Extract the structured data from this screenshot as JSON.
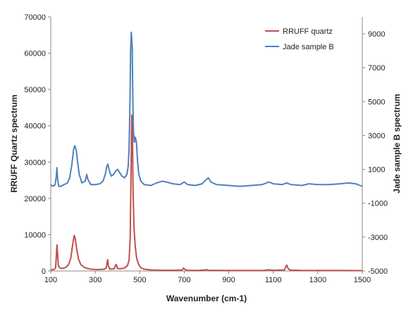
{
  "chart_data": {
    "type": "line",
    "xlabel": "Wavenumber (cm-1)",
    "ylabel_left": "RRUFF Quartz spectrum",
    "ylabel_right": "Jade sample B spectrum",
    "xlim": [
      100,
      1500
    ],
    "x_ticks": [
      100,
      300,
      500,
      700,
      900,
      1100,
      1300,
      1500
    ],
    "y_left_lim": [
      0,
      70000
    ],
    "y_left_ticks": [
      0,
      10000,
      20000,
      30000,
      40000,
      50000,
      60000,
      70000
    ],
    "y_right_lim": [
      -5000,
      10000
    ],
    "y_right_ticks": [
      -5000,
      -3000,
      -1000,
      1000,
      3000,
      5000,
      7000,
      9000
    ],
    "grid": false,
    "legend_position": "top-right",
    "series": [
      {
        "name": "RRUFF quartz",
        "axis": "left",
        "color": "#c0504d",
        "points": [
          [
            100,
            300
          ],
          [
            115,
            400
          ],
          [
            122,
            900
          ],
          [
            126,
            5000
          ],
          [
            128,
            7200
          ],
          [
            130,
            5500
          ],
          [
            134,
            1500
          ],
          [
            140,
            900
          ],
          [
            150,
            700
          ],
          [
            160,
            800
          ],
          [
            170,
            1100
          ],
          [
            180,
            1800
          ],
          [
            190,
            3500
          ],
          [
            198,
            7000
          ],
          [
            205,
            9800
          ],
          [
            210,
            9000
          ],
          [
            218,
            5500
          ],
          [
            225,
            3200
          ],
          [
            235,
            1800
          ],
          [
            250,
            1000
          ],
          [
            265,
            700
          ],
          [
            280,
            500
          ],
          [
            300,
            400
          ],
          [
            320,
            400
          ],
          [
            340,
            500
          ],
          [
            350,
            900
          ],
          [
            354,
            2700
          ],
          [
            356,
            3100
          ],
          [
            359,
            1500
          ],
          [
            365,
            500
          ],
          [
            385,
            600
          ],
          [
            392,
            1700
          ],
          [
            395,
            1800
          ],
          [
            399,
            700
          ],
          [
            410,
            600
          ],
          [
            430,
            800
          ],
          [
            445,
            1500
          ],
          [
            452,
            3000
          ],
          [
            457,
            9000
          ],
          [
            461,
            28000
          ],
          [
            464,
            43000
          ],
          [
            467,
            38000
          ],
          [
            470,
            22000
          ],
          [
            474,
            12000
          ],
          [
            480,
            6500
          ],
          [
            486,
            3500
          ],
          [
            495,
            1800
          ],
          [
            505,
            900
          ],
          [
            520,
            500
          ],
          [
            550,
            300
          ],
          [
            600,
            200
          ],
          [
            650,
            200
          ],
          [
            690,
            250
          ],
          [
            696,
            800
          ],
          [
            700,
            600
          ],
          [
            710,
            200
          ],
          [
            760,
            150
          ],
          [
            795,
            300
          ],
          [
            800,
            400
          ],
          [
            806,
            200
          ],
          [
            900,
            150
          ],
          [
            1000,
            150
          ],
          [
            1060,
            150
          ],
          [
            1075,
            350
          ],
          [
            1085,
            300
          ],
          [
            1095,
            200
          ],
          [
            1150,
            300
          ],
          [
            1157,
            1300
          ],
          [
            1161,
            1600
          ],
          [
            1166,
            700
          ],
          [
            1175,
            250
          ],
          [
            1230,
            150
          ],
          [
            1300,
            150
          ],
          [
            1400,
            150
          ],
          [
            1500,
            100
          ]
        ]
      },
      {
        "name": "Jade sample B",
        "axis": "right",
        "color": "#4f81bd",
        "points": [
          [
            100,
            100
          ],
          [
            110,
            0
          ],
          [
            120,
            100
          ],
          [
            125,
            600
          ],
          [
            128,
            1100
          ],
          [
            131,
            400
          ],
          [
            136,
            0
          ],
          [
            145,
            0
          ],
          [
            160,
            100
          ],
          [
            175,
            200
          ],
          [
            185,
            500
          ],
          [
            195,
            1300
          ],
          [
            203,
            2200
          ],
          [
            208,
            2400
          ],
          [
            215,
            2100
          ],
          [
            220,
            1500
          ],
          [
            228,
            700
          ],
          [
            240,
            200
          ],
          [
            255,
            300
          ],
          [
            262,
            700
          ],
          [
            267,
            400
          ],
          [
            280,
            100
          ],
          [
            300,
            100
          ],
          [
            320,
            150
          ],
          [
            335,
            300
          ],
          [
            345,
            700
          ],
          [
            352,
            1200
          ],
          [
            357,
            1300
          ],
          [
            364,
            900
          ],
          [
            372,
            600
          ],
          [
            382,
            700
          ],
          [
            392,
            900
          ],
          [
            400,
            1000
          ],
          [
            410,
            800
          ],
          [
            420,
            600
          ],
          [
            432,
            500
          ],
          [
            442,
            700
          ],
          [
            448,
            1200
          ],
          [
            452,
            2200
          ],
          [
            456,
            5000
          ],
          [
            459,
            8000
          ],
          [
            462,
            9100
          ],
          [
            466,
            8200
          ],
          [
            469,
            5000
          ],
          [
            472,
            3200
          ],
          [
            476,
            2600
          ],
          [
            480,
            2900
          ],
          [
            485,
            2600
          ],
          [
            490,
            1500
          ],
          [
            496,
            700
          ],
          [
            505,
            300
          ],
          [
            520,
            100
          ],
          [
            550,
            50
          ],
          [
            575,
            200
          ],
          [
            600,
            300
          ],
          [
            620,
            250
          ],
          [
            650,
            150
          ],
          [
            680,
            100
          ],
          [
            700,
            250
          ],
          [
            715,
            100
          ],
          [
            750,
            50
          ],
          [
            780,
            150
          ],
          [
            795,
            350
          ],
          [
            808,
            500
          ],
          [
            820,
            250
          ],
          [
            845,
            100
          ],
          [
            900,
            50
          ],
          [
            950,
            0
          ],
          [
            1000,
            50
          ],
          [
            1050,
            100
          ],
          [
            1080,
            250
          ],
          [
            1100,
            150
          ],
          [
            1140,
            100
          ],
          [
            1160,
            200
          ],
          [
            1180,
            100
          ],
          [
            1230,
            50
          ],
          [
            1260,
            150
          ],
          [
            1300,
            100
          ],
          [
            1350,
            100
          ],
          [
            1400,
            150
          ],
          [
            1440,
            200
          ],
          [
            1470,
            150
          ],
          [
            1490,
            50
          ],
          [
            1500,
            0
          ]
        ]
      }
    ]
  }
}
